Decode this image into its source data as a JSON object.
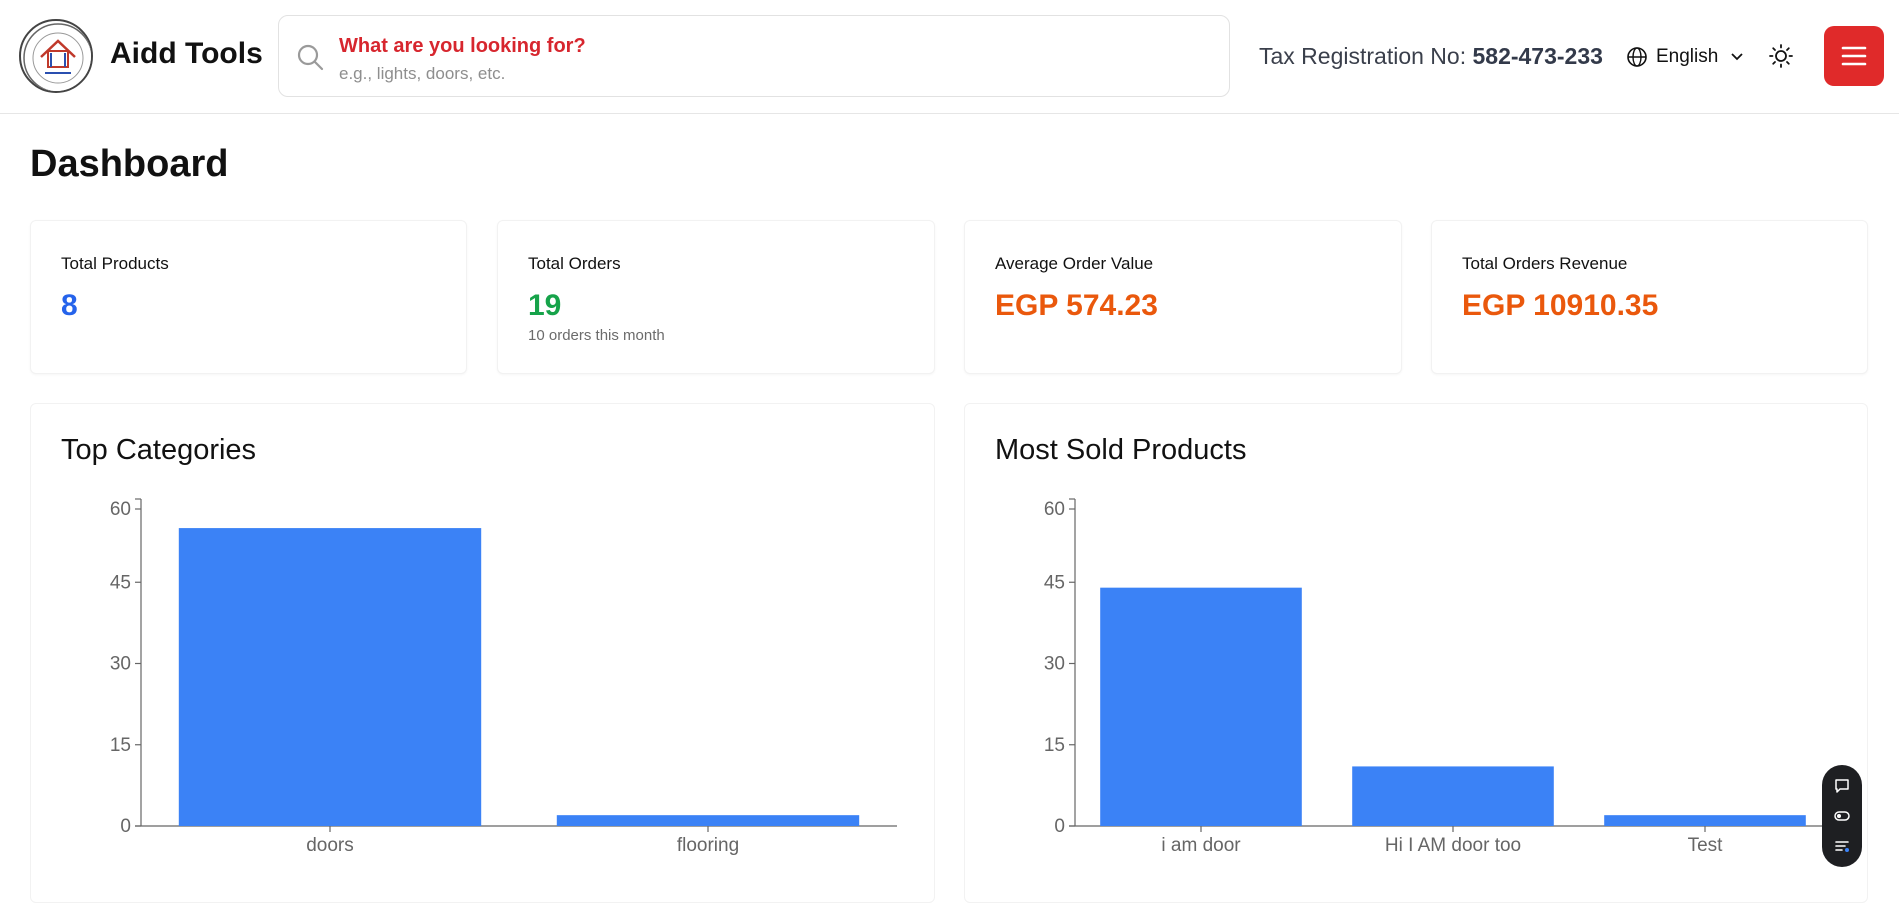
{
  "header": {
    "brand": "Aidd Tools",
    "search": {
      "title": "What are you looking for?",
      "hint": "e.g., lights, doors, etc."
    },
    "tax_label": "Tax Registration No: ",
    "tax_number": "582-473-233",
    "language": "English"
  },
  "page": {
    "title": "Dashboard"
  },
  "stats": [
    {
      "label": "Total Products",
      "value": "8",
      "sub": "",
      "color": "#2563eb"
    },
    {
      "label": "Total Orders",
      "value": "19",
      "sub": "10 orders this month",
      "color": "#16a34a"
    },
    {
      "label": "Average Order Value",
      "value": "EGP 574.23",
      "sub": "",
      "color": "#ea580c"
    },
    {
      "label": "Total Orders Revenue",
      "value": "EGP 10910.35",
      "sub": "",
      "color": "#ea580c"
    }
  ],
  "chart_data": [
    {
      "type": "bar",
      "title": "Top Categories",
      "categories": [
        "doors",
        "flooring"
      ],
      "values": [
        55,
        2
      ],
      "ylim": [
        0,
        60
      ],
      "yticks": [
        "0",
        "15",
        "30",
        "45",
        "60"
      ],
      "color": "#3b82f6"
    },
    {
      "type": "bar",
      "title": "Most Sold Products",
      "categories": [
        "i am door",
        "Hi I AM door too",
        "Test"
      ],
      "values": [
        44,
        11,
        2
      ],
      "ylim": [
        0,
        60
      ],
      "yticks": [
        "0",
        "15",
        "30",
        "45",
        "60"
      ],
      "color": "#3b82f6"
    }
  ],
  "colors": {
    "accent_red": "#e02a2a",
    "search_title": "#d7262e",
    "bar": "#3b82f6"
  }
}
